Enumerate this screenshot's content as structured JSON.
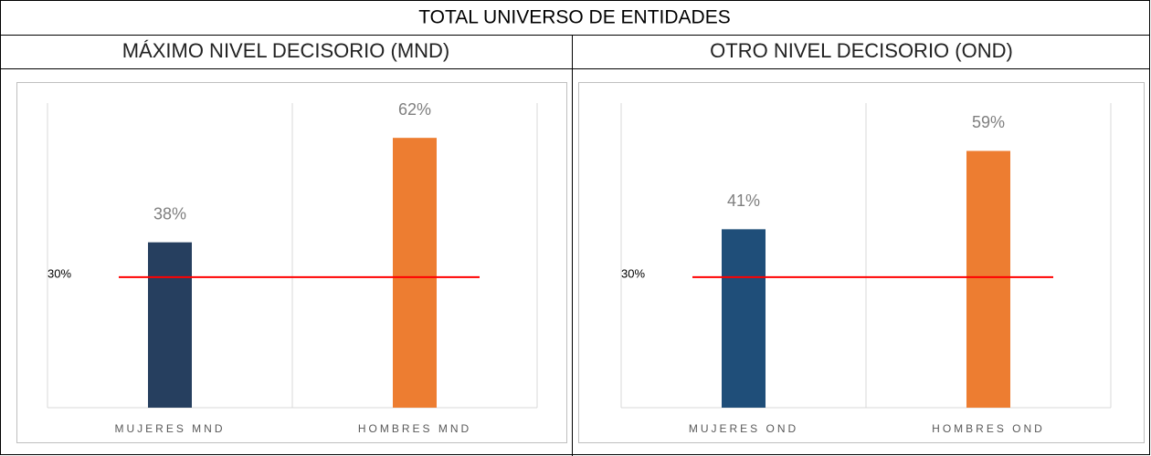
{
  "title": "TOTAL UNIVERSO DE ENTIDADES",
  "chart_data": [
    {
      "type": "bar",
      "title": "MÁXIMO NIVEL DECISORIO (MND)",
      "categories": [
        "MUJERES MND",
        "HOMBRES MND"
      ],
      "values": [
        38,
        62
      ],
      "value_labels": [
        "38%",
        "62%"
      ],
      "colors": [
        "#263f5f",
        "#ed7d31"
      ],
      "ylim": [
        0,
        70
      ],
      "reference": {
        "value": 30,
        "label": "30%",
        "color": "#ff0000"
      }
    },
    {
      "type": "bar",
      "title": "OTRO NIVEL DECISORIO (OND)",
      "categories": [
        "MUJERES OND",
        "HOMBRES OND"
      ],
      "values": [
        41,
        59
      ],
      "value_labels": [
        "41%",
        "59%"
      ],
      "colors": [
        "#1f4e79",
        "#ed7d31"
      ],
      "ylim": [
        0,
        70
      ],
      "reference": {
        "value": 30,
        "label": "30%",
        "color": "#ff0000"
      }
    }
  ]
}
